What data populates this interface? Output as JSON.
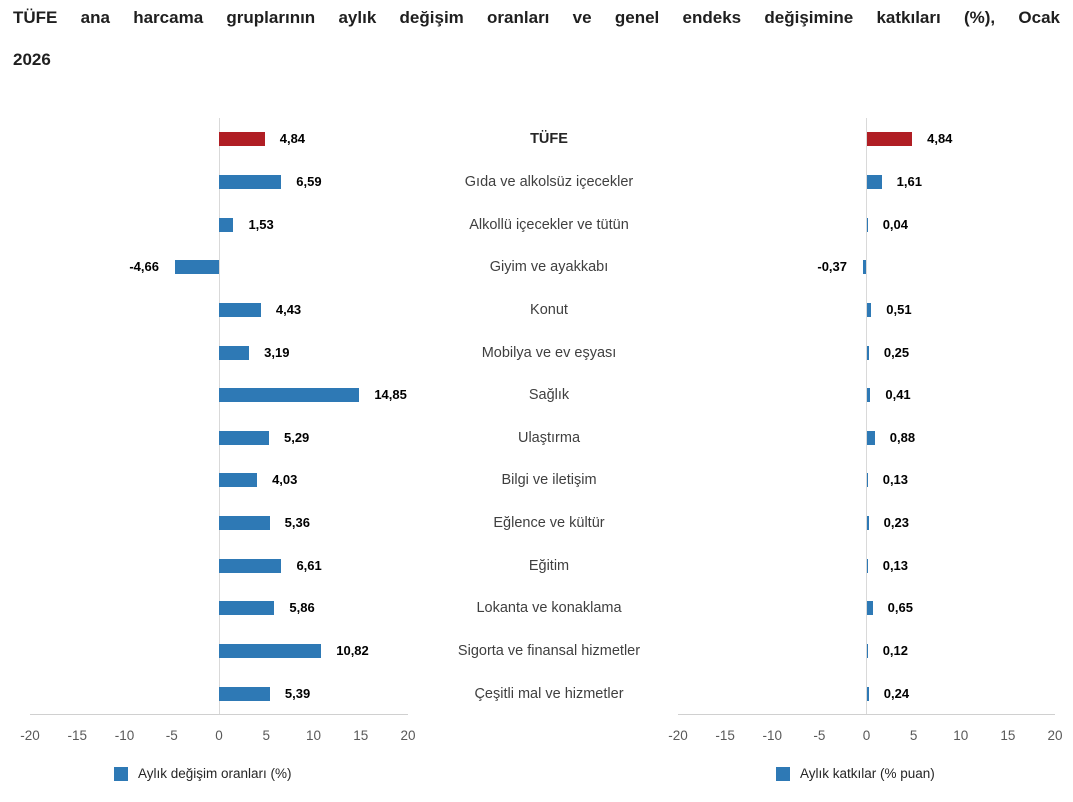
{
  "title": "TÜFE ana harcama gruplarının aylık değişim oranları ve genel endeks değişimine katkıları (%), Ocak 2026",
  "colors": {
    "bar_blue": "#2e79b5",
    "bar_red": "#b01e24",
    "axis_text": "#595959",
    "gridline": "#d9d9d9",
    "category_text": "#3f3f3f",
    "value_text": "#000000"
  },
  "chart_data": {
    "type": "bar",
    "orientation": "horizontal",
    "categories": [
      "TÜFE",
      "Gıda ve alkolsüz içecekler",
      "Alkollü içecekler ve tütün",
      "Giyim ve ayakkabı",
      "Konut",
      "Mobilya ve ev eşyası",
      "Sağlık",
      "Ulaştırma",
      "Bilgi ve iletişim",
      "Eğlence ve kültür",
      "Eğitim",
      "Lokanta ve konaklama",
      "Sigorta ve finansal hizmetler",
      "Çeşitli mal ve hizmetler"
    ],
    "highlight_category": "TÜFE",
    "xlim": [
      -20,
      20
    ],
    "x_ticks": [
      "-20",
      "-15",
      "-10",
      "-5",
      "0",
      "5",
      "10",
      "15",
      "20"
    ],
    "grid": "zero-line-only",
    "legend_position": "bottom",
    "series": [
      {
        "name": "Aylık değişim oranları (%)",
        "values": [
          4.84,
          6.59,
          1.53,
          -4.66,
          4.43,
          3.19,
          14.85,
          5.29,
          4.03,
          5.36,
          6.61,
          5.86,
          10.82,
          5.39
        ],
        "labels": [
          "4,84",
          "6,59",
          "1,53",
          "-4,66",
          "4,43",
          "3,19",
          "14,85",
          "5,29",
          "4,03",
          "5,36",
          "6,61",
          "5,86",
          "10,82",
          "5,39"
        ]
      },
      {
        "name": "Aylık katkılar (% puan)",
        "values": [
          4.84,
          1.61,
          0.04,
          -0.37,
          0.51,
          0.25,
          0.41,
          0.88,
          0.13,
          0.23,
          0.13,
          0.65,
          0.12,
          0.24
        ],
        "labels": [
          "4,84",
          "1,61",
          "0,04",
          "-0,37",
          "0,51",
          "0,25",
          "0,41",
          "0,88",
          "0,13",
          "0,23",
          "0,13",
          "0,65",
          "0,12",
          "0,24"
        ]
      }
    ]
  }
}
